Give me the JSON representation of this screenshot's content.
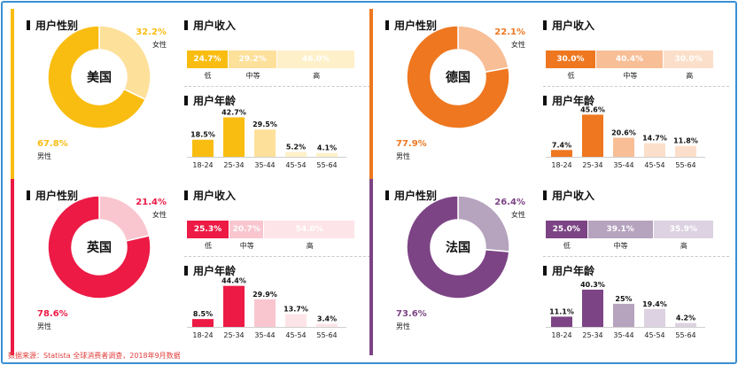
{
  "labels": {
    "gender": "用户性别",
    "income": "用户收入",
    "age": "用户年龄",
    "female": "女性",
    "male": "男性",
    "income_levels": [
      "低",
      "中等",
      "高"
    ],
    "age_groups": [
      "18-24",
      "25-34",
      "35-44",
      "45-54",
      "55-64"
    ]
  },
  "source": "数据来源：Statista 全球消费者调查，2018年9月数据",
  "chart_data": [
    {
      "type": "pie",
      "country": "美国",
      "colors": {
        "main": "#f9bd12",
        "light": "#fde09a",
        "pale": "#fef0c9"
      },
      "gender": {
        "female": "32.2%",
        "male": "67.8%",
        "female_value": 32.2,
        "male_value": 67.8
      },
      "income": {
        "values": [
          24.7,
          29.2,
          46.0
        ],
        "labels": [
          "24.7%",
          "29.2%",
          "46.0%"
        ]
      },
      "age": {
        "values": [
          18.5,
          42.7,
          29.5,
          5.2,
          4.1
        ],
        "labels": [
          "18.5%",
          "42.7%",
          "29.5%",
          "5.2%",
          "4.1%"
        ]
      }
    },
    {
      "type": "pie",
      "country": "德国",
      "colors": {
        "main": "#ee7720",
        "light": "#f8be96",
        "pale": "#fcdfca"
      },
      "gender": {
        "female": "22.1%",
        "male": "77.9%",
        "female_value": 22.1,
        "male_value": 77.9
      },
      "income": {
        "values": [
          30.0,
          40.4,
          30.0
        ],
        "labels": [
          "30.0%",
          "40.4%",
          "30.0%"
        ]
      },
      "age": {
        "values": [
          7.4,
          45.6,
          20.6,
          14.7,
          11.8
        ],
        "labels": [
          "7.4%",
          "45.6%",
          "20.6%",
          "14.7%",
          "11.8%"
        ]
      }
    },
    {
      "type": "pie",
      "country": "英国",
      "colors": {
        "main": "#ec1a45",
        "light": "#f9c6cf",
        "pale": "#fde4e8"
      },
      "gender": {
        "female": "21.4%",
        "male": "78.6%",
        "female_value": 21.4,
        "male_value": 78.6
      },
      "income": {
        "values": [
          25.3,
          20.7,
          54.0
        ],
        "labels": [
          "25.3%",
          "20.7%",
          "54.0%"
        ]
      },
      "age": {
        "values": [
          8.5,
          44.4,
          29.9,
          13.7,
          3.4
        ],
        "labels": [
          "8.5%",
          "44.4%",
          "29.9%",
          "13.7%",
          "3.4%"
        ]
      }
    },
    {
      "type": "pie",
      "country": "法国",
      "colors": {
        "main": "#7c4485",
        "light": "#b6a3be",
        "pale": "#dcd2e1"
      },
      "gender": {
        "female": "26.4%",
        "male": "73.6%",
        "female_value": 26.4,
        "male_value": 73.6
      },
      "income": {
        "values": [
          25.0,
          39.1,
          35.9
        ],
        "labels": [
          "25.0%",
          "39.1%",
          "35.9%"
        ]
      },
      "age": {
        "values": [
          11.1,
          40.3,
          25,
          19.4,
          4.2
        ],
        "labels": [
          "11.1%",
          "40.3%",
          "25%",
          "19.4%",
          "4.2%"
        ]
      }
    }
  ]
}
